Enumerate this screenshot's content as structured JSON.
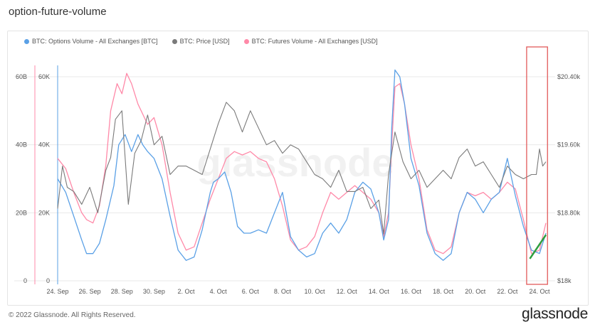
{
  "page": {
    "title": "option-future-volume"
  },
  "footer": {
    "copyright": "© 2022 Glassnode. All Rights Reserved.",
    "brand": "glassnode"
  },
  "watermark": "glassnode",
  "colors": {
    "options": "#5aa0e6",
    "price": "#7a7a7a",
    "futures": "#ff89a8",
    "highlight": "#e25a5a",
    "trend": "#2e9e3e"
  },
  "chart_data": {
    "type": "line",
    "title": "option-future-volume",
    "legend_position": "top-left",
    "grid": true,
    "x_ticks": [
      "24. Sep",
      "26. Sep",
      "28. Sep",
      "30. Sep",
      "2. Oct",
      "4. Oct",
      "6. Oct",
      "8. Oct",
      "10. Oct",
      "12. Oct",
      "14. Oct",
      "16. Oct",
      "18. Oct",
      "20. Oct",
      "22. Oct",
      "24. Oct"
    ],
    "x_range": [
      0,
      30.4
    ],
    "y_axes": {
      "futures": {
        "ticks": [
          "0",
          "20B",
          "40B",
          "60B"
        ],
        "range": [
          0,
          60000000000
        ]
      },
      "options": {
        "ticks": [
          "0",
          "20K",
          "40K",
          "60K"
        ],
        "range": [
          0,
          60000
        ]
      },
      "price": {
        "ticks": [
          "$18k",
          "$18.80k",
          "$19.60k",
          "$20.40k"
        ],
        "range": [
          18000,
          20400
        ]
      }
    },
    "series": [
      {
        "name": "BTC: Options Volume - All Exchanges [BTC]",
        "key": "options",
        "x": [
          0.0,
          0.5,
          1.0,
          1.5,
          1.8,
          2.2,
          2.6,
          3.0,
          3.5,
          3.8,
          4.2,
          4.6,
          5.0,
          5.3,
          5.6,
          6.0,
          6.5,
          7.0,
          7.5,
          8.0,
          8.5,
          9.0,
          9.5,
          9.7,
          10.0,
          10.4,
          10.8,
          11.2,
          11.6,
          12.0,
          12.5,
          13.0,
          13.5,
          14.0,
          14.5,
          15.0,
          15.5,
          16.0,
          16.5,
          17.0,
          17.5,
          18.0,
          18.5,
          19.0,
          19.5,
          20.0,
          20.3,
          20.6,
          20.8,
          21.0,
          21.3,
          21.6,
          22.0,
          22.5,
          23.0,
          23.5,
          24.0,
          24.5,
          25.0,
          25.5,
          26.0,
          26.5,
          27.0,
          27.5,
          28.0,
          28.5,
          29.0,
          29.5,
          30.0,
          30.4
        ],
        "values": [
          30000,
          26000,
          19000,
          12000,
          8000,
          8000,
          11000,
          18000,
          28000,
          40000,
          43000,
          38000,
          43000,
          40000,
          38000,
          36000,
          30000,
          19000,
          9000,
          6000,
          7000,
          15000,
          26000,
          29000,
          30000,
          32000,
          26000,
          16000,
          14000,
          14000,
          15000,
          14000,
          20000,
          26000,
          13000,
          9000,
          7000,
          8000,
          14000,
          17000,
          14000,
          18000,
          26000,
          29000,
          27000,
          20000,
          12000,
          18000,
          45000,
          62000,
          60000,
          52000,
          36000,
          28000,
          14000,
          8000,
          6000,
          8000,
          20000,
          26000,
          24000,
          20000,
          24000,
          26000,
          36000,
          25000,
          16000,
          9000,
          8000,
          14000
        ]
      },
      {
        "name": "BTC: Price [USD]",
        "key": "price",
        "x": [
          0.0,
          0.3,
          0.6,
          1.0,
          1.5,
          2.0,
          2.5,
          3.0,
          3.3,
          3.6,
          4.0,
          4.4,
          4.8,
          5.2,
          5.6,
          6.0,
          6.5,
          7.0,
          7.5,
          8.0,
          8.5,
          9.0,
          9.5,
          10.0,
          10.5,
          11.0,
          11.5,
          12.0,
          12.5,
          13.0,
          13.5,
          14.0,
          14.5,
          15.0,
          15.5,
          16.0,
          16.5,
          17.0,
          17.5,
          18.0,
          18.5,
          19.0,
          19.5,
          20.0,
          20.3,
          20.6,
          21.0,
          21.5,
          22.0,
          22.5,
          23.0,
          23.5,
          24.0,
          24.5,
          25.0,
          25.5,
          26.0,
          26.5,
          27.0,
          27.5,
          28.0,
          28.5,
          29.0,
          29.5,
          29.8,
          30.0,
          30.2,
          30.4
        ],
        "values": [
          18850,
          19350,
          19100,
          19050,
          18900,
          19100,
          18800,
          19300,
          19450,
          19900,
          20000,
          18900,
          19500,
          19650,
          19950,
          19600,
          19700,
          19250,
          19350,
          19350,
          19300,
          19250,
          19550,
          19850,
          20100,
          20000,
          19750,
          20000,
          19800,
          19600,
          19650,
          19500,
          19600,
          19550,
          19400,
          19250,
          19200,
          19100,
          19300,
          19050,
          19050,
          19100,
          18850,
          18950,
          18550,
          19250,
          19750,
          19400,
          19200,
          19300,
          19100,
          19200,
          19300,
          19200,
          19450,
          19550,
          19350,
          19400,
          19250,
          19100,
          19350,
          19250,
          19200,
          19250,
          19250,
          19550,
          19350,
          19400
        ]
      },
      {
        "name": "BTC: Futures Volume - All Exchanges [USD]",
        "key": "futures",
        "x": [
          0.0,
          0.5,
          1.0,
          1.5,
          1.8,
          2.2,
          2.6,
          3.0,
          3.3,
          3.7,
          4.0,
          4.3,
          4.6,
          5.0,
          5.3,
          5.6,
          6.0,
          6.5,
          7.0,
          7.5,
          8.0,
          8.5,
          9.0,
          9.5,
          10.0,
          10.5,
          11.0,
          11.5,
          12.0,
          12.5,
          13.0,
          13.5,
          14.0,
          14.5,
          15.0,
          15.5,
          16.0,
          16.5,
          17.0,
          17.5,
          18.0,
          18.5,
          19.0,
          19.5,
          20.0,
          20.3,
          20.6,
          20.8,
          21.0,
          21.3,
          21.6,
          22.0,
          22.5,
          23.0,
          23.5,
          24.0,
          24.5,
          25.0,
          25.5,
          26.0,
          26.5,
          27.0,
          27.5,
          28.0,
          28.5,
          29.0,
          29.5,
          30.0,
          30.4
        ],
        "values": [
          36000000000,
          33000000000,
          26000000000,
          20000000000,
          18000000000,
          17000000000,
          22000000000,
          34000000000,
          50000000000,
          58000000000,
          55000000000,
          61000000000,
          58000000000,
          52000000000,
          49000000000,
          46000000000,
          48000000000,
          40000000000,
          26000000000,
          14000000000,
          9000000000,
          10000000000,
          17000000000,
          24000000000,
          30000000000,
          36000000000,
          38000000000,
          37000000000,
          38000000000,
          36000000000,
          35000000000,
          30000000000,
          22000000000,
          12000000000,
          9000000000,
          10000000000,
          13000000000,
          20000000000,
          26000000000,
          24000000000,
          26000000000,
          28000000000,
          26000000000,
          24000000000,
          20000000000,
          13000000000,
          20000000000,
          40000000000,
          57000000000,
          58000000000,
          52000000000,
          40000000000,
          30000000000,
          15000000000,
          9000000000,
          8000000000,
          10000000000,
          20000000000,
          26000000000,
          25000000000,
          26000000000,
          24000000000,
          26000000000,
          29000000000,
          27000000000,
          18000000000,
          8000000000,
          9000000000,
          17000000000
        ]
      }
    ],
    "annotations": {
      "highlight_box": {
        "x_from": 29.2,
        "x_to": 30.5
      },
      "trend_arrow": {
        "x": [
          29.4,
          30.4
        ],
        "futures_values": [
          6500000000,
          13500000000
        ]
      }
    }
  }
}
